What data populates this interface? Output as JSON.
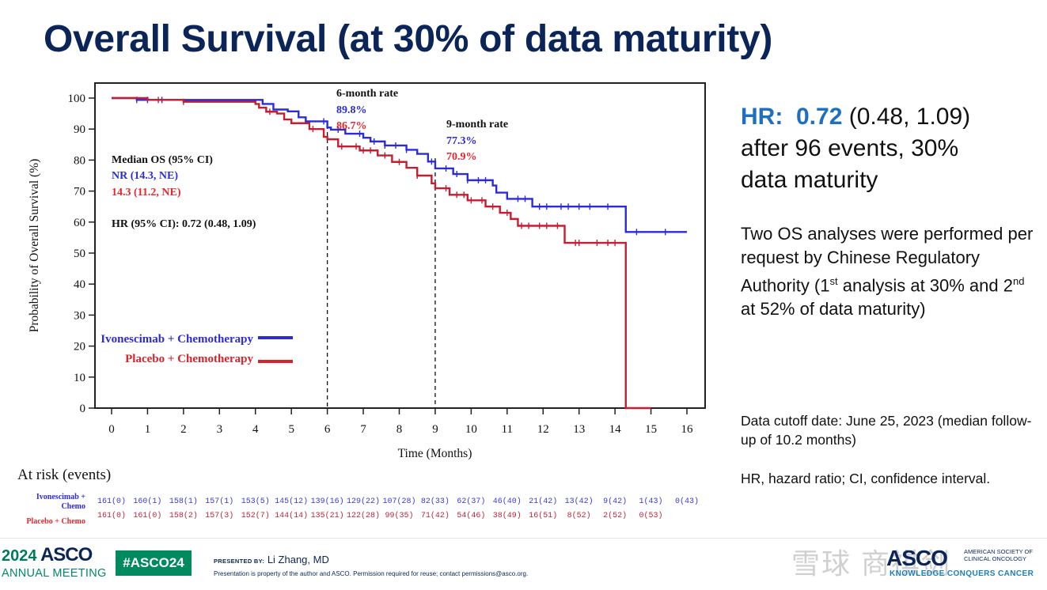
{
  "slide": {
    "title": "Overall Survival (at 30% of data maturity)"
  },
  "chart_data": {
    "type": "line",
    "subtype": "kaplan-meier",
    "title": "",
    "xlabel": "Time (Months)",
    "ylabel": "Probability of  Overall Survival (%)",
    "xlim": [
      0,
      16
    ],
    "ylim": [
      0,
      100
    ],
    "x_ticks": [
      0,
      1,
      2,
      3,
      4,
      5,
      6,
      7,
      8,
      9,
      10,
      11,
      12,
      13,
      14,
      15,
      16
    ],
    "y_ticks": [
      0,
      10,
      20,
      30,
      40,
      50,
      60,
      70,
      80,
      90,
      100
    ],
    "grid": false,
    "reference_lines": [
      6,
      9
    ],
    "legend_position": "lower-left",
    "series": [
      {
        "name": "Ivonescimab + Chemotherapy",
        "color": "#2b2bd9",
        "points": [
          [
            0,
            100
          ],
          [
            0.7,
            99.4
          ],
          [
            1.9,
            99.4
          ],
          [
            4.0,
            99.4
          ],
          [
            4.2,
            98.1
          ],
          [
            4.5,
            96.3
          ],
          [
            4.9,
            95.7
          ],
          [
            5.2,
            93.8
          ],
          [
            5.4,
            92.5
          ],
          [
            6.0,
            90.5
          ],
          [
            6.1,
            89.8
          ],
          [
            6.5,
            88.5
          ],
          [
            7.0,
            87.2
          ],
          [
            7.2,
            86.0
          ],
          [
            7.6,
            84.7
          ],
          [
            8.2,
            83.3
          ],
          [
            8.5,
            82.0
          ],
          [
            8.8,
            79.5
          ],
          [
            9.0,
            77.3
          ],
          [
            9.5,
            75.5
          ],
          [
            9.9,
            73.5
          ],
          [
            10.6,
            71.8
          ],
          [
            10.7,
            69.5
          ],
          [
            11.0,
            67.5
          ],
          [
            11.7,
            65.0
          ],
          [
            14.3,
            65.0
          ],
          [
            14.3,
            56.8
          ],
          [
            16.0,
            56.8
          ]
        ],
        "censor_marks": [
          0.7,
          1.0,
          1.4,
          5.9,
          6.3,
          6.9,
          7.3,
          7.6,
          7.9,
          8.2,
          8.9,
          9.3,
          9.6,
          9.9,
          10.2,
          10.4,
          11.3,
          11.5,
          11.9,
          12.1,
          12.5,
          12.7,
          13.0,
          13.3,
          13.8,
          14.6,
          15.4
        ]
      },
      {
        "name": "Placebo + Chemotherapy",
        "color": "#c41e30",
        "points": [
          [
            0,
            100
          ],
          [
            1.0,
            99.4
          ],
          [
            2.0,
            98.8
          ],
          [
            4.0,
            98.1
          ],
          [
            4.1,
            96.9
          ],
          [
            4.3,
            95.6
          ],
          [
            4.6,
            95.0
          ],
          [
            4.8,
            93.1
          ],
          [
            5.0,
            91.9
          ],
          [
            5.5,
            90.0
          ],
          [
            5.9,
            87.5
          ],
          [
            6.0,
            86.7
          ],
          [
            6.3,
            84.4
          ],
          [
            6.9,
            83.1
          ],
          [
            7.4,
            81.5
          ],
          [
            7.8,
            79.4
          ],
          [
            8.2,
            77.5
          ],
          [
            8.5,
            75.0
          ],
          [
            8.9,
            72.5
          ],
          [
            9.0,
            70.9
          ],
          [
            9.4,
            68.8
          ],
          [
            9.9,
            67.0
          ],
          [
            10.4,
            65.0
          ],
          [
            10.8,
            63.0
          ],
          [
            11.1,
            61.0
          ],
          [
            11.3,
            58.8
          ],
          [
            12.6,
            58.8
          ],
          [
            12.6,
            53.3
          ],
          [
            14.3,
            53.3
          ],
          [
            14.3,
            0
          ],
          [
            15.0,
            0
          ]
        ],
        "censor_marks": [
          1.3,
          2.0,
          4.4,
          5.6,
          6.4,
          6.8,
          7.0,
          7.2,
          7.6,
          8.0,
          8.5,
          9.3,
          9.6,
          9.8,
          10.0,
          10.3,
          10.6,
          11.0,
          11.4,
          11.6,
          11.9,
          12.1,
          12.4,
          12.9,
          13.0,
          13.5,
          13.8,
          14.0
        ]
      }
    ],
    "annotations": {
      "six_month": {
        "label": "6-month rate",
        "ivo": "89.8%",
        "placebo": "86.7%"
      },
      "nine_month": {
        "label": "9-month rate",
        "ivo": "77.3%",
        "placebo": "70.9%"
      },
      "median_header": "Median OS (95% CI)",
      "median_ivo": "NR (14.3, NE)",
      "median_placebo": "14.3 (11.2, NE)",
      "hr": "HR (95% CI): 0.72 (0.48, 1.09)"
    },
    "legend": [
      {
        "label": "Ivonescimab + Chemotherapy",
        "color": "#2b2bd9"
      },
      {
        "label": "Placebo + Chemotherapy",
        "color": "#d8232a"
      }
    ],
    "at_risk": {
      "title": "At risk (events)",
      "ivo_label_1": "Ivonescimab +",
      "ivo_label_2": "Chemo",
      "placebo_label": "Placebo + Chemo",
      "ivo": [
        "161(0)",
        "160(1)",
        "158(1)",
        "157(1)",
        "153(5)",
        "145(12)",
        "139(16)",
        "129(22)",
        "107(28)",
        "82(33)",
        "62(37)",
        "46(40)",
        "21(42)",
        "13(42)",
        "9(42)",
        "1(43)",
        "0(43)"
      ],
      "placebo": [
        "161(0)",
        "161(0)",
        "158(2)",
        "157(3)",
        "152(7)",
        "144(14)",
        "135(21)",
        "122(28)",
        "99(35)",
        "71(42)",
        "54(46)",
        "38(49)",
        "16(51)",
        "8(52)",
        "2(52)",
        "0(53)"
      ]
    }
  },
  "side_panel": {
    "hr_label": "HR:",
    "hr_value": "0.72",
    "hr_ci": " (0.48, 1.09)",
    "hr_line2": "after 96 events, 30%",
    "hr_line3": "data maturity",
    "note_1": "Two OS analyses were performed per request by Chinese Regulatory Authority (1",
    "note_sup1": "st",
    "note_2": " analysis at 30% and 2",
    "note_sup2": "nd",
    "note_3": " at 52% of data maturity)",
    "cutoff": "Data cutoff date: June 25, 2023 (median follow-up of 10.2 months)",
    "abbr": "HR, hazard ratio; CI, confidence interval."
  },
  "footer": {
    "year": "2024",
    "asco": "ASCO",
    "annual_meeting": "ANNUAL MEETING",
    "hashtag": "#ASCO24",
    "presented_by_label": "PRESENTED BY:",
    "presenter": "Li Zhang, MD",
    "disclaimer": "Presentation is property of the author and ASCO. Permission required for reuse; contact permissions@asco.org.",
    "asco_logo": "ASCO",
    "asco_org_1": "AMERICAN SOCIETY OF",
    "asco_org_2": "CLINICAL ONCOLOGY",
    "tagline": "KNOWLEDGE CONQUERS CANCER",
    "watermark": "雪球 商祺剑"
  }
}
